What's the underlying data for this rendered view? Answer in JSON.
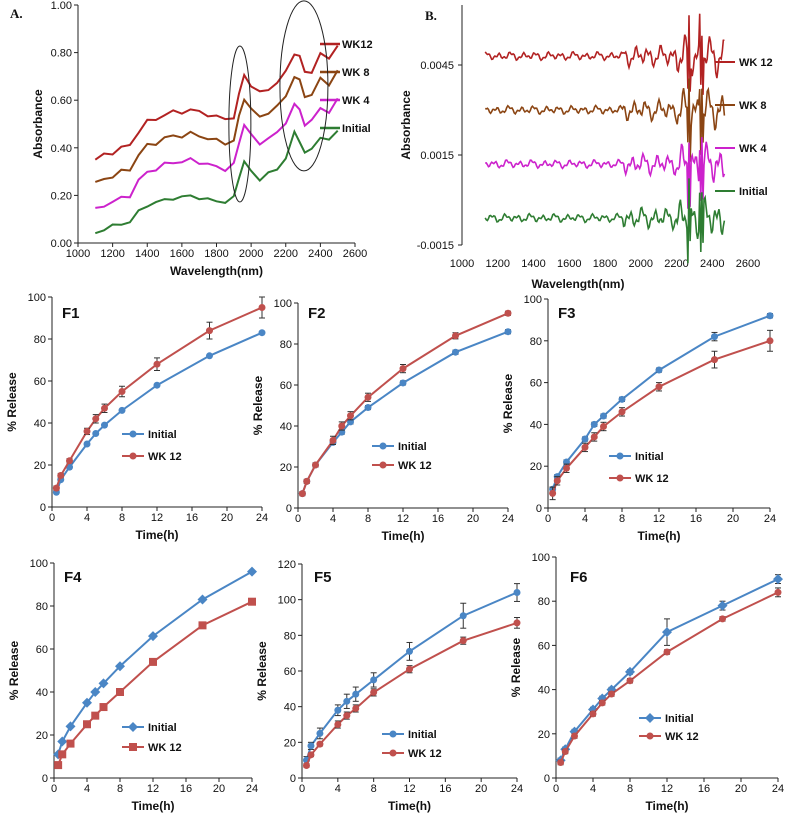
{
  "chart_data": [
    {
      "id": "A",
      "panel_label": "A.",
      "type": "line",
      "xlabel": "Wavelength(nm)",
      "ylabel": "Absorbance",
      "xlim": [
        1000,
        2600
      ],
      "ylim": [
        0,
        1.0
      ],
      "xticks": [
        "1000",
        "1200",
        "1400",
        "1600",
        "1800",
        "2000",
        "2200",
        "2400",
        "2600"
      ],
      "yticks": [
        "0.00",
        "0.20",
        "0.40",
        "0.60",
        "0.80",
        "1.00"
      ],
      "x": [
        1100,
        1150,
        1200,
        1250,
        1300,
        1350,
        1400,
        1450,
        1500,
        1550,
        1600,
        1650,
        1700,
        1750,
        1800,
        1850,
        1900,
        1930,
        1960,
        2000,
        2050,
        2100,
        2150,
        2200,
        2250,
        2280,
        2310,
        2350,
        2400,
        2450,
        2500
      ],
      "series": [
        {
          "name": "WK12",
          "color": "#b22222",
          "values": [
            0.35,
            0.37,
            0.38,
            0.4,
            0.41,
            0.47,
            0.51,
            0.52,
            0.54,
            0.55,
            0.55,
            0.56,
            0.55,
            0.54,
            0.53,
            0.52,
            0.53,
            0.62,
            0.71,
            0.66,
            0.63,
            0.65,
            0.67,
            0.72,
            0.8,
            0.78,
            0.72,
            0.72,
            0.79,
            0.78,
            0.83
          ]
        },
        {
          "name": "WK 8",
          "color": "#8b4513",
          "values": [
            0.25,
            0.27,
            0.28,
            0.3,
            0.31,
            0.37,
            0.41,
            0.42,
            0.44,
            0.45,
            0.45,
            0.46,
            0.45,
            0.44,
            0.43,
            0.42,
            0.43,
            0.53,
            0.61,
            0.56,
            0.53,
            0.55,
            0.57,
            0.62,
            0.7,
            0.68,
            0.62,
            0.62,
            0.69,
            0.67,
            0.72
          ]
        },
        {
          "name": "WK 4",
          "color": "#cc22cc",
          "values": [
            0.14,
            0.16,
            0.17,
            0.19,
            0.2,
            0.26,
            0.3,
            0.31,
            0.33,
            0.34,
            0.34,
            0.35,
            0.34,
            0.33,
            0.32,
            0.31,
            0.33,
            0.42,
            0.5,
            0.45,
            0.42,
            0.44,
            0.46,
            0.51,
            0.58,
            0.56,
            0.5,
            0.51,
            0.57,
            0.55,
            0.6
          ]
        },
        {
          "name": "Initial",
          "color": "#2e7d32",
          "values": [
            0.04,
            0.06,
            0.07,
            0.08,
            0.09,
            0.13,
            0.16,
            0.17,
            0.18,
            0.19,
            0.19,
            0.2,
            0.19,
            0.18,
            0.18,
            0.17,
            0.19,
            0.28,
            0.34,
            0.3,
            0.27,
            0.29,
            0.31,
            0.36,
            0.46,
            0.43,
            0.38,
            0.39,
            0.45,
            0.43,
            0.47
          ]
        }
      ]
    },
    {
      "id": "B",
      "panel_label": "B.",
      "type": "line",
      "xlabel": "Wavelength(nm)",
      "ylabel": "Absorbance",
      "xlim": [
        1000,
        2600
      ],
      "ylim": [
        -0.0015,
        0.0065
      ],
      "xticks": [
        "1000",
        "1200",
        "1400",
        "1600",
        "1800",
        "2000",
        "2200",
        "2400",
        "2600"
      ],
      "yticks": [
        "-0.0015",
        "0.0015",
        "0.0045"
      ],
      "series": [
        {
          "name": "WK 12",
          "color": "#b22222",
          "offset": 0.0048
        },
        {
          "name": "WK 8",
          "color": "#8b4513",
          "offset": 0.003
        },
        {
          "name": "WK 4",
          "color": "#cc22cc",
          "offset": 0.0012
        },
        {
          "name": "Initial",
          "color": "#2e7d32",
          "offset": -0.0006
        }
      ]
    },
    {
      "id": "F1",
      "title": "F1",
      "type": "line",
      "xlabel": "Time(h)",
      "ylabel": "% Release",
      "xlim": [
        0,
        24
      ],
      "ylim": [
        0,
        100
      ],
      "xticks": [
        "0",
        "4",
        "8",
        "12",
        "16",
        "20",
        "24"
      ],
      "yticks": [
        "0",
        "20",
        "40",
        "60",
        "80",
        "100"
      ],
      "x": [
        0.5,
        1,
        2,
        4,
        5,
        6,
        8,
        12,
        18,
        24
      ],
      "series": [
        {
          "name": "Initial",
          "color": "#4a86c5",
          "marker": "circle",
          "values": [
            7,
            13,
            19,
            30,
            35,
            39,
            46,
            58,
            72,
            83
          ],
          "err": [
            0,
            0,
            0,
            0,
            0,
            0,
            0,
            0,
            0,
            0
          ]
        },
        {
          "name": "WK 12",
          "color": "#c0504d",
          "marker": "circle",
          "values": [
            9,
            15,
            22,
            36,
            42,
            47,
            55,
            68,
            84,
            95
          ],
          "err": [
            1,
            1,
            1,
            1.5,
            2,
            2,
            2.5,
            3,
            4,
            5
          ]
        }
      ]
    },
    {
      "id": "F2",
      "title": "F2",
      "type": "line",
      "xlabel": "Time(h)",
      "ylabel": "% Release",
      "xlim": [
        0,
        24
      ],
      "ylim": [
        0,
        100
      ],
      "xticks": [
        "0",
        "4",
        "8",
        "12",
        "16",
        "20",
        "24"
      ],
      "yticks": [
        "0",
        "20",
        "40",
        "60",
        "80",
        "100"
      ],
      "x": [
        0.5,
        1,
        2,
        4,
        5,
        6,
        8,
        12,
        18,
        24
      ],
      "series": [
        {
          "name": "Initial",
          "color": "#4a86c5",
          "marker": "circle",
          "values": [
            7,
            13,
            21,
            32,
            37,
            42,
            49,
            61,
            76,
            86
          ],
          "err": [
            0,
            0,
            0,
            1,
            1,
            1,
            1,
            1,
            1,
            1
          ]
        },
        {
          "name": "WK 12",
          "color": "#c0504d",
          "marker": "circle",
          "values": [
            7,
            13,
            21,
            33,
            40,
            45,
            54,
            68,
            84,
            95
          ],
          "err": [
            1,
            1,
            1,
            2,
            2,
            2,
            2,
            2,
            1.5,
            1
          ]
        }
      ]
    },
    {
      "id": "F3",
      "title": "F3",
      "type": "line",
      "xlabel": "Time(h)",
      "ylabel": "% Release",
      "xlim": [
        0,
        24
      ],
      "ylim": [
        0,
        100
      ],
      "xticks": [
        "0",
        "4",
        "8",
        "12",
        "16",
        "20",
        "24"
      ],
      "yticks": [
        "0",
        "20",
        "40",
        "60",
        "80",
        "100"
      ],
      "x": [
        0.5,
        1,
        2,
        4,
        5,
        6,
        8,
        12,
        18,
        24
      ],
      "series": [
        {
          "name": "Initial",
          "color": "#4a86c5",
          "marker": "circle",
          "values": [
            9,
            15,
            22,
            33,
            40,
            44,
            52,
            66,
            82,
            92
          ],
          "err": [
            1,
            1,
            1,
            1,
            1,
            1,
            1,
            1,
            2,
            1
          ]
        },
        {
          "name": "WK 12",
          "color": "#c0504d",
          "marker": "circle",
          "values": [
            7,
            13,
            19,
            29,
            34,
            39,
            46,
            58,
            71,
            80
          ],
          "err": [
            3,
            2,
            2,
            2,
            2,
            2,
            2,
            2,
            4,
            5
          ]
        }
      ]
    },
    {
      "id": "F4",
      "title": "F4",
      "type": "line",
      "xlabel": "Time(h)",
      "ylabel": "% Release",
      "xlim": [
        0,
        24
      ],
      "ylim": [
        0,
        100
      ],
      "xticks": [
        "0",
        "4",
        "8",
        "12",
        "16",
        "20",
        "24"
      ],
      "yticks": [
        "0",
        "20",
        "40",
        "60",
        "80",
        "100"
      ],
      "x": [
        0.5,
        1,
        2,
        4,
        5,
        6,
        8,
        12,
        18,
        24
      ],
      "series": [
        {
          "name": "Initial",
          "color": "#4a86c5",
          "marker": "diamond",
          "values": [
            11,
            17,
            24,
            35,
            40,
            44,
            52,
            66,
            83,
            96
          ],
          "err": [
            0,
            0,
            0,
            0,
            0,
            0,
            0,
            0,
            0,
            0
          ]
        },
        {
          "name": "WK 12",
          "color": "#c0504d",
          "marker": "square",
          "values": [
            6,
            11,
            16,
            25,
            29,
            33,
            40,
            54,
            71,
            82
          ],
          "err": [
            0,
            0,
            0,
            0,
            0,
            0,
            0,
            0,
            0,
            0
          ]
        }
      ]
    },
    {
      "id": "F5",
      "title": "F5",
      "type": "line",
      "xlabel": "Time(h)",
      "ylabel": "% Release",
      "xlim": [
        0,
        24
      ],
      "ylim": [
        0,
        120
      ],
      "xticks": [
        "0",
        "4",
        "8",
        "12",
        "16",
        "20",
        "24"
      ],
      "yticks": [
        "0",
        "20",
        "40",
        "60",
        "80",
        "100",
        "120"
      ],
      "x": [
        0.5,
        1,
        2,
        4,
        5,
        6,
        8,
        12,
        18,
        24
      ],
      "series": [
        {
          "name": "Initial",
          "color": "#4a86c5",
          "marker": "circle",
          "values": [
            10,
            18,
            25,
            38,
            43,
            47,
            55,
            71,
            91,
            104
          ],
          "err": [
            2,
            2,
            3,
            3,
            4,
            4,
            4,
            5,
            7,
            5
          ]
        },
        {
          "name": "WK 12",
          "color": "#c0504d",
          "marker": "circle",
          "values": [
            7,
            13,
            19,
            30,
            35,
            39,
            48,
            61,
            77,
            87
          ],
          "err": [
            1,
            1,
            1,
            2,
            2,
            2,
            2,
            2,
            2,
            3
          ]
        }
      ]
    },
    {
      "id": "F6",
      "title": "F6",
      "type": "line",
      "xlabel": "Time(h)",
      "ylabel": "% Release",
      "xlim": [
        0,
        24
      ],
      "ylim": [
        0,
        100
      ],
      "xticks": [
        "0",
        "4",
        "8",
        "12",
        "16",
        "20",
        "24"
      ],
      "yticks": [
        "0",
        "20",
        "40",
        "60",
        "80",
        "100"
      ],
      "x": [
        0.5,
        1,
        2,
        4,
        5,
        6,
        8,
        12,
        18,
        24
      ],
      "series": [
        {
          "name": "Initial",
          "color": "#4a86c5",
          "marker": "diamond",
          "values": [
            8,
            13,
            21,
            31,
            36,
            40,
            48,
            66,
            78,
            90
          ],
          "err": [
            1,
            1,
            1,
            1,
            1,
            1,
            1,
            6,
            2,
            2
          ]
        },
        {
          "name": "WK 12",
          "color": "#c0504d",
          "marker": "circle",
          "values": [
            7,
            12,
            19,
            29,
            34,
            38,
            44,
            57,
            72,
            84
          ],
          "err": [
            1,
            1,
            1,
            1,
            1,
            1,
            1,
            1,
            1,
            2
          ]
        }
      ]
    }
  ]
}
